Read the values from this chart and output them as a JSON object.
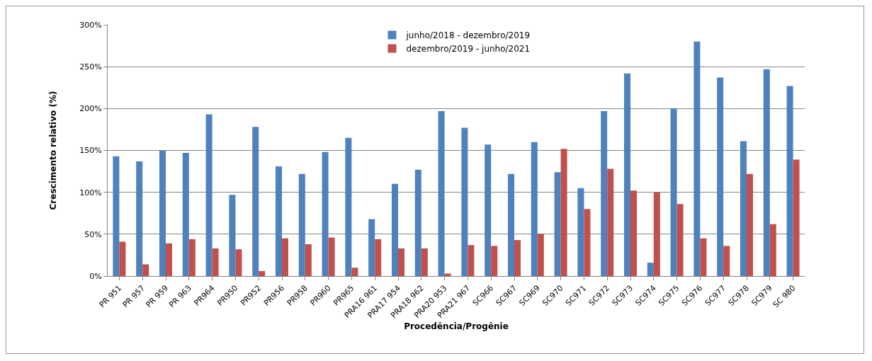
{
  "chart_data": {
    "type": "bar",
    "xlabel": "Procedência/Progênie",
    "ylabel": "Crescimento relativo (%)",
    "categories": [
      "PR 951",
      "PR 957",
      "PR 959",
      "PR 963",
      "PR964",
      "PR950",
      "PR952",
      "PR956",
      "PR958",
      "PR960",
      "PR965",
      "PRA16 961",
      "PRA17 954",
      "PRA18 962",
      "PRA20 953",
      "PRA21 967",
      "SC966",
      "SC967",
      "SC969",
      "SC970",
      "SC971",
      "SC972",
      "SC973",
      "SC974",
      "SC975",
      "SC976",
      "SC977",
      "SC978",
      "SC979",
      "SC 980"
    ],
    "series": [
      {
        "name": "junho/2018 - dezembro/2019",
        "color": "#4f81bd",
        "values": [
          143,
          137,
          150,
          147,
          193,
          97,
          178,
          131,
          122,
          148,
          165,
          68,
          110,
          127,
          197,
          177,
          157,
          122,
          160,
          124,
          105,
          197,
          242,
          16,
          200,
          280,
          237,
          161,
          247,
          227
        ]
      },
      {
        "name": "dezembro/2019 - junho/2021",
        "color": "#c0504d",
        "values": [
          41,
          14,
          39,
          44,
          33,
          32,
          6,
          45,
          38,
          46,
          10,
          44,
          33,
          33,
          3,
          37,
          36,
          43,
          50,
          152,
          80,
          128,
          102,
          100,
          86,
          45,
          36,
          122,
          62,
          139
        ]
      }
    ],
    "ylim": [
      0,
      300
    ],
    "yticks": [
      {
        "value": 0,
        "label": "0%"
      },
      {
        "value": 50,
        "label": "50%"
      },
      {
        "value": 100,
        "label": "100%"
      },
      {
        "value": 150,
        "label": "150%"
      },
      {
        "value": 200,
        "label": "200%"
      },
      {
        "value": 250,
        "label": "250%"
      },
      {
        "value": 300,
        "label": "300%"
      }
    ],
    "grid": "y",
    "legend": "top"
  }
}
